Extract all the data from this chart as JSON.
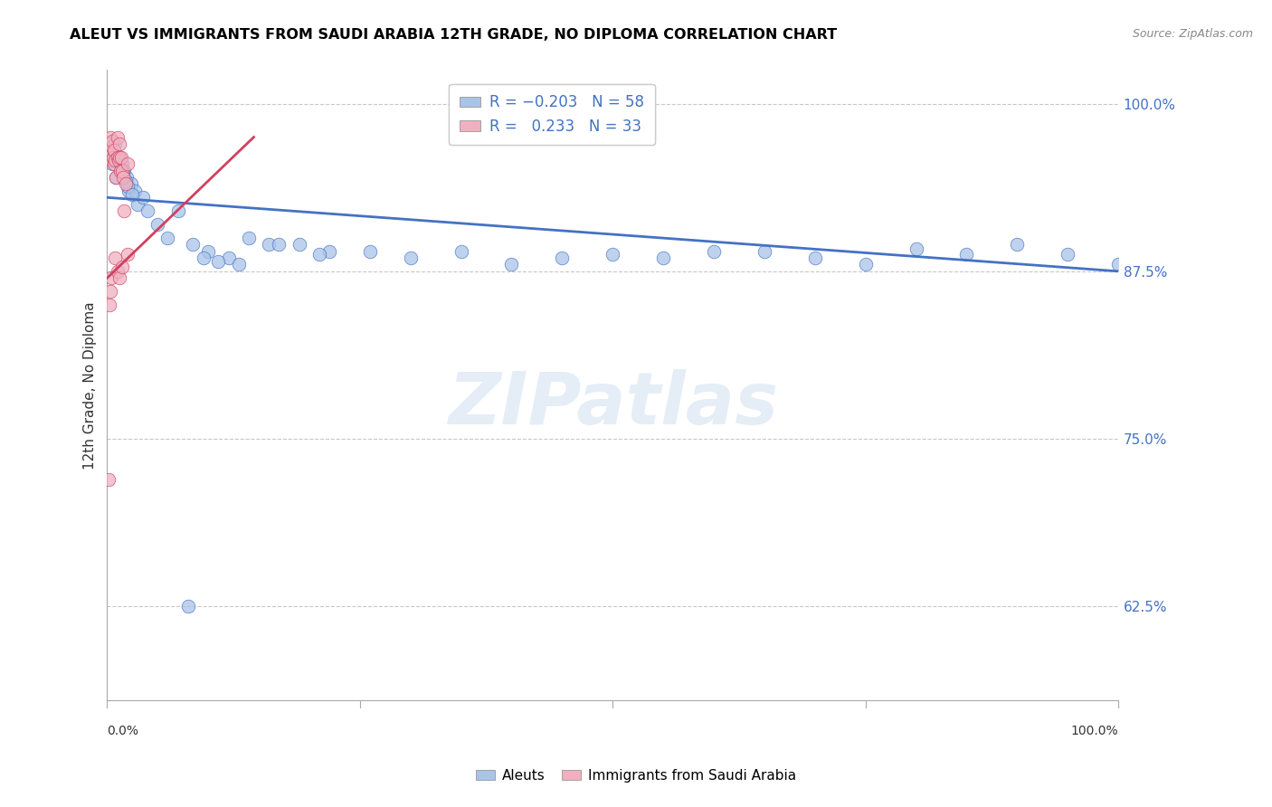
{
  "title": "ALEUT VS IMMIGRANTS FROM SAUDI ARABIA 12TH GRADE, NO DIPLOMA CORRELATION CHART",
  "source": "Source: ZipAtlas.com",
  "ylabel": "12th Grade, No Diploma",
  "aleuts_color": "#aac4e8",
  "saudi_color": "#f0b0c0",
  "blue_line_color": "#4472c4",
  "red_line_color": "#d04060",
  "watermark_text": "ZIPatlas",
  "aleuts_x": [
    0.002,
    0.003,
    0.004,
    0.005,
    0.006,
    0.007,
    0.008,
    0.009,
    0.01,
    0.012,
    0.013,
    0.015,
    0.017,
    0.019,
    0.021,
    0.024,
    0.027,
    0.03,
    0.035,
    0.04,
    0.05,
    0.06,
    0.07,
    0.085,
    0.1,
    0.12,
    0.14,
    0.16,
    0.19,
    0.22,
    0.26,
    0.3,
    0.35,
    0.4,
    0.45,
    0.5,
    0.55,
    0.6,
    0.65,
    0.7,
    0.75,
    0.8,
    0.85,
    0.9,
    0.95,
    1.0,
    0.011,
    0.014,
    0.016,
    0.018,
    0.02,
    0.025,
    0.08,
    0.095,
    0.11,
    0.13,
    0.17,
    0.21
  ],
  "aleuts_y": [
    0.96,
    0.97,
    0.965,
    0.955,
    0.96,
    0.965,
    0.97,
    0.945,
    0.96,
    0.96,
    0.955,
    0.955,
    0.95,
    0.945,
    0.935,
    0.94,
    0.935,
    0.925,
    0.93,
    0.92,
    0.91,
    0.9,
    0.92,
    0.895,
    0.89,
    0.885,
    0.9,
    0.895,
    0.895,
    0.89,
    0.89,
    0.885,
    0.89,
    0.88,
    0.885,
    0.888,
    0.885,
    0.89,
    0.89,
    0.885,
    0.88,
    0.892,
    0.888,
    0.895,
    0.888,
    0.88,
    0.958,
    0.95,
    0.948,
    0.942,
    0.938,
    0.932,
    0.625,
    0.885,
    0.882,
    0.88,
    0.895,
    0.888
  ],
  "saudi_x": [
    0.001,
    0.002,
    0.003,
    0.003,
    0.004,
    0.005,
    0.005,
    0.006,
    0.007,
    0.007,
    0.008,
    0.009,
    0.01,
    0.01,
    0.011,
    0.012,
    0.012,
    0.013,
    0.014,
    0.015,
    0.016,
    0.017,
    0.018,
    0.02,
    0.002,
    0.003,
    0.004,
    0.008,
    0.01,
    0.012,
    0.015,
    0.02,
    0.001
  ],
  "saudi_y": [
    0.96,
    0.97,
    0.965,
    0.975,
    0.958,
    0.968,
    0.972,
    0.96,
    0.965,
    0.955,
    0.958,
    0.945,
    0.96,
    0.975,
    0.958,
    0.97,
    0.96,
    0.95,
    0.96,
    0.95,
    0.945,
    0.92,
    0.94,
    0.955,
    0.85,
    0.86,
    0.87,
    0.885,
    0.875,
    0.87,
    0.878,
    0.888,
    0.72
  ],
  "blue_line_x0": 0.0,
  "blue_line_y0": 0.93,
  "blue_line_x1": 1.0,
  "blue_line_y1": 0.875,
  "red_line_x0": 0.0,
  "red_line_y0": 0.87,
  "red_line_x1": 0.145,
  "red_line_y1": 0.975,
  "xlim": [
    0.0,
    1.0
  ],
  "ylim": [
    0.555,
    1.025
  ],
  "grid_yticks": [
    0.625,
    0.75,
    0.875,
    1.0
  ],
  "right_ytick_labels": [
    "62.5%",
    "75.0%",
    "87.5%",
    "100.0%"
  ]
}
